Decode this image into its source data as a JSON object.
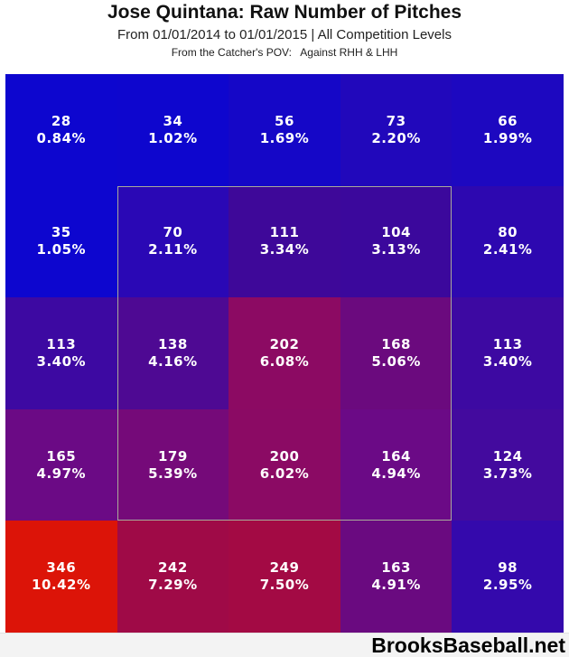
{
  "chart_data": {
    "type": "heatmap",
    "title": "Jose Quintana: Raw Number of Pitches",
    "subtitle": "From 01/01/2014 to 01/01/2015 | All Competition Levels",
    "annotation": "From the Catcher's POV:   Against RHH & LHH",
    "rows": 5,
    "cols": 5,
    "value_label": "raw pitch count",
    "secondary_value_label": "percent of total pitches",
    "color_scale": {
      "low": "#0D06CF",
      "mid": "#6B0A85",
      "high": "#DC1408",
      "description": "blue = low frequency, purple = mid, red = high"
    },
    "strike_zone": {
      "row_start": 2,
      "row_end": 4,
      "col_start": 2,
      "col_end": 4,
      "border_color": "#A9A99B"
    },
    "cells": [
      [
        {
          "count": 28,
          "pct": "0.84%",
          "color": "#0D06CF"
        },
        {
          "count": 34,
          "pct": "1.02%",
          "color": "#0E06CE"
        },
        {
          "count": 56,
          "pct": "1.69%",
          "color": "#1507C7"
        },
        {
          "count": 73,
          "pct": "2.20%",
          "color": "#2108BB"
        },
        {
          "count": 66,
          "pct": "1.99%",
          "color": "#1D08C0"
        }
      ],
      [
        {
          "count": 35,
          "pct": "1.05%",
          "color": "#0D06CF"
        },
        {
          "count": 70,
          "pct": "2.11%",
          "color": "#2A08B5"
        },
        {
          "count": 111,
          "pct": "3.34%",
          "color": "#3E0899"
        },
        {
          "count": 104,
          "pct": "3.13%",
          "color": "#3B089C"
        },
        {
          "count": 80,
          "pct": "2.41%",
          "color": "#2D08B0"
        }
      ],
      [
        {
          "count": 113,
          "pct": "3.40%",
          "color": "#3D09A2"
        },
        {
          "count": 138,
          "pct": "4.16%",
          "color": "#4E0993"
        },
        {
          "count": 202,
          "pct": "6.08%",
          "color": "#8C0A63"
        },
        {
          "count": 168,
          "pct": "5.06%",
          "color": "#6B0A7E"
        },
        {
          "count": 113,
          "pct": "3.40%",
          "color": "#3D09A2"
        }
      ],
      [
        {
          "count": 165,
          "pct": "4.97%",
          "color": "#6B0A85"
        },
        {
          "count": 179,
          "pct": "5.39%",
          "color": "#750A79"
        },
        {
          "count": 200,
          "pct": "6.02%",
          "color": "#8B0A64"
        },
        {
          "count": 164,
          "pct": "4.94%",
          "color": "#6B0A86"
        },
        {
          "count": 124,
          "pct": "3.73%",
          "color": "#430A9E"
        }
      ],
      [
        {
          "count": 346,
          "pct": "10.42%",
          "color": "#DC1408"
        },
        {
          "count": 242,
          "pct": "7.29%",
          "color": "#9F0A47"
        },
        {
          "count": 249,
          "pct": "7.50%",
          "color": "#A30A44"
        },
        {
          "count": 163,
          "pct": "4.91%",
          "color": "#6A0A80"
        },
        {
          "count": 98,
          "pct": "2.95%",
          "color": "#3409AC"
        }
      ]
    ]
  },
  "footer": {
    "watermark": "BrooksBaseball.net",
    "background": "#F3F3F3"
  }
}
